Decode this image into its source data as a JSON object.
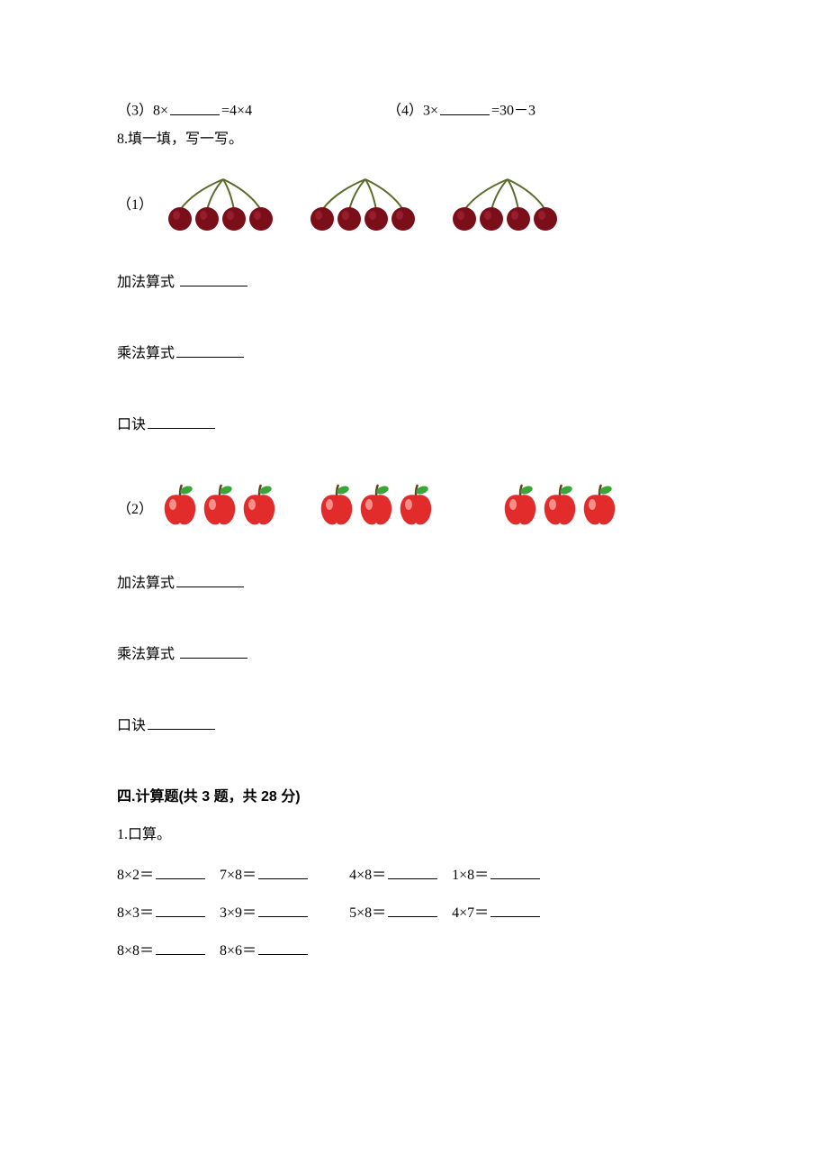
{
  "q3": {
    "text_a": "（3）8×",
    "text_b": "=4×4"
  },
  "q4": {
    "text_a": "（4）3×",
    "text_b": "=30－3"
  },
  "q8_title": "8.填一填，写一写。",
  "sub1_label": "（1）",
  "sub2_label": "（2）",
  "add_label": "加法算式",
  "mul_label": "乘法算式",
  "kj_label": "口诀",
  "section4": "四.计算题(共 3 题，共 28 分)",
  "calc_title": "1.口算。",
  "row1": {
    "a": "8×2＝",
    "b": "7×8＝",
    "c": "4×8＝",
    "d": "1×8＝"
  },
  "row2": {
    "a": "8×3＝",
    "b": "3×9＝",
    "c": "5×8＝",
    "d": "4×7＝"
  },
  "row3": {
    "a": "8×8＝",
    "b": "8×6＝"
  },
  "cherry": {
    "body_color": "#7a0f1a",
    "highlight": "#a82838",
    "stem": "#5a6a2a",
    "groups": 3,
    "per_group": 4
  },
  "apple": {
    "body_color": "#e22b2b",
    "highlight": "#ffb0a8",
    "leaf": "#3aa63a",
    "stem": "#6b3d1a",
    "groups": 3,
    "per_group": 3
  }
}
